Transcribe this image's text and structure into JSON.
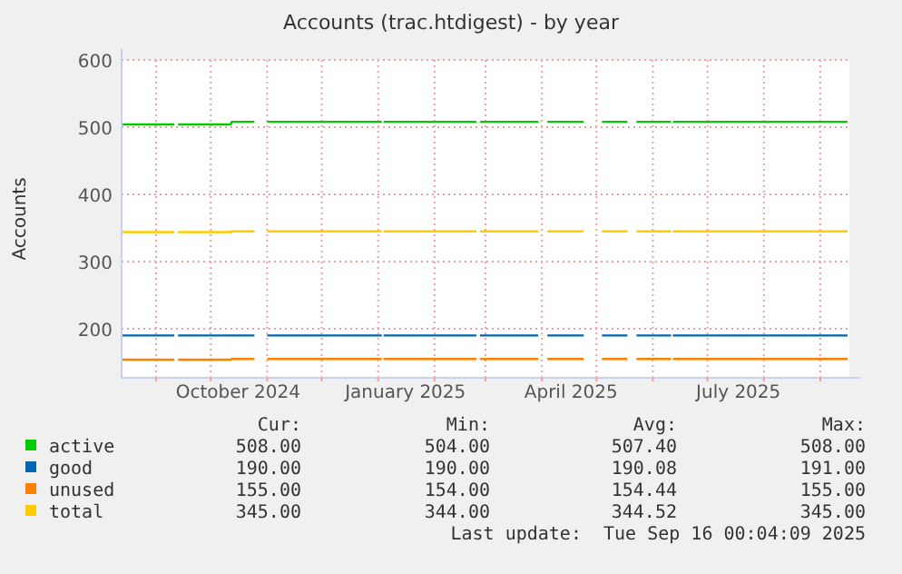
{
  "chart_data": {
    "type": "line",
    "title": "Accounts (trac.htdigest) - by year",
    "ylabel": "Accounts",
    "x": [
      "2024-08-13",
      "2024-09-11",
      "2024-09-12",
      "2024-09-13",
      "2024-10-12",
      "2024-10-12T12:00",
      "2024-10-25",
      "2024-10-28",
      "2024-11-01",
      "2025-01-03",
      "2025-01-03T12:00",
      "2025-01-04",
      "2025-02-24",
      "2025-02-25",
      "2025-02-26",
      "2025-03-30",
      "2025-04-02",
      "2025-04-04",
      "2025-04-24",
      "2025-04-29",
      "2025-05-04",
      "2025-05-18",
      "2025-05-20",
      "2025-05-23",
      "2025-06-11",
      "2025-06-11T12:00",
      "2025-06-12",
      "2025-09-16"
    ],
    "series": [
      {
        "name": "active",
        "color": "#00cc00",
        "values": [
          504,
          504,
          null,
          504,
          504,
          508,
          508,
          null,
          508,
          508,
          null,
          508,
          508,
          null,
          508,
          508,
          null,
          508,
          508,
          null,
          508,
          508,
          null,
          508,
          508,
          null,
          508,
          508
        ]
      },
      {
        "name": "good",
        "color": "#0066b3",
        "values": [
          190,
          190,
          null,
          190,
          190,
          190,
          190,
          null,
          190,
          190,
          null,
          190,
          190,
          null,
          190,
          190,
          null,
          190,
          190,
          null,
          190,
          190,
          null,
          190,
          190,
          null,
          190,
          190
        ]
      },
      {
        "name": "unused",
        "color": "#ff8000",
        "values": [
          154,
          154,
          null,
          154,
          154,
          155,
          155,
          null,
          155,
          155,
          null,
          155,
          155,
          null,
          155,
          155,
          null,
          155,
          155,
          null,
          155,
          155,
          null,
          155,
          155,
          null,
          155,
          155
        ]
      },
      {
        "name": "total",
        "color": "#ffcc00",
        "values": [
          344,
          344,
          null,
          344,
          344,
          345,
          345,
          null,
          345,
          345,
          null,
          345,
          345,
          null,
          345,
          345,
          null,
          345,
          345,
          null,
          345,
          345,
          null,
          345,
          345,
          null,
          345,
          345
        ]
      }
    ],
    "xlim": [
      "2024-08-13",
      "2025-09-17"
    ],
    "xticks": [
      {
        "value": "2024-09-01",
        "label": null
      },
      {
        "value": "2024-10-01",
        "label": null
      },
      {
        "value": "2024-10-16",
        "label": "October 2024"
      },
      {
        "value": "2024-11-01",
        "label": null
      },
      {
        "value": "2024-12-01",
        "label": null
      },
      {
        "value": "2025-01-01",
        "label": null
      },
      {
        "value": "2025-01-16",
        "label": "January 2025"
      },
      {
        "value": "2025-02-01",
        "label": null
      },
      {
        "value": "2025-03-01",
        "label": null
      },
      {
        "value": "2025-04-01",
        "label": null
      },
      {
        "value": "2025-04-17",
        "label": "April 2025"
      },
      {
        "value": "2025-05-01",
        "label": null
      },
      {
        "value": "2025-06-01",
        "label": null
      },
      {
        "value": "2025-07-01",
        "label": null
      },
      {
        "value": "2025-07-18",
        "label": "July 2025"
      },
      {
        "value": "2025-08-01",
        "label": null
      },
      {
        "value": "2025-09-01",
        "label": null
      }
    ],
    "ylim": [
      127,
      600
    ],
    "yticks": [
      200,
      300,
      400,
      500,
      600
    ],
    "grid": true,
    "legend": "bottom",
    "annotations": [
      "Cur:",
      "Min:",
      "Avg:",
      "Max:",
      "508.00",
      "504.00",
      "507.40",
      "508.00",
      "190.00",
      "190.00",
      "190.08",
      "191.00",
      "155.00",
      "154.00",
      "154.44",
      "155.00",
      "345.00",
      "344.00",
      "344.52",
      "345.00",
      "Last update:  Tue Sep 16 00:04:09 2025"
    ]
  }
}
